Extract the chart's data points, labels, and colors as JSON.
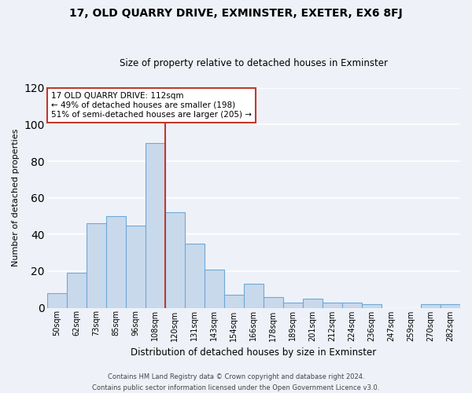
{
  "title": "17, OLD QUARRY DRIVE, EXMINSTER, EXETER, EX6 8FJ",
  "subtitle": "Size of property relative to detached houses in Exminster",
  "xlabel": "Distribution of detached houses by size in Exminster",
  "ylabel": "Number of detached properties",
  "bar_labels": [
    "50sqm",
    "62sqm",
    "73sqm",
    "85sqm",
    "96sqm",
    "108sqm",
    "120sqm",
    "131sqm",
    "143sqm",
    "154sqm",
    "166sqm",
    "178sqm",
    "189sqm",
    "201sqm",
    "212sqm",
    "224sqm",
    "236sqm",
    "247sqm",
    "259sqm",
    "270sqm",
    "282sqm"
  ],
  "bar_values": [
    8,
    19,
    46,
    50,
    45,
    90,
    52,
    35,
    21,
    7,
    13,
    6,
    3,
    5,
    3,
    3,
    2,
    0,
    0,
    2,
    2
  ],
  "bar_color": "#c9d9ec",
  "bar_edge_color": "#6fa8d6",
  "vline_color": "#c0392b",
  "annotation_text": "17 OLD QUARRY DRIVE: 112sqm\n← 49% of detached houses are smaller (198)\n51% of semi-detached houses are larger (205) →",
  "annotation_box_color": "#ffffff",
  "annotation_box_edge": "#c0392b",
  "ylim": [
    0,
    120
  ],
  "yticks": [
    0,
    20,
    40,
    60,
    80,
    100,
    120
  ],
  "footer_line1": "Contains HM Land Registry data © Crown copyright and database right 2024.",
  "footer_line2": "Contains public sector information licensed under the Open Government Licence v3.0.",
  "bg_color": "#eef2f8",
  "grid_color": "#ffffff"
}
